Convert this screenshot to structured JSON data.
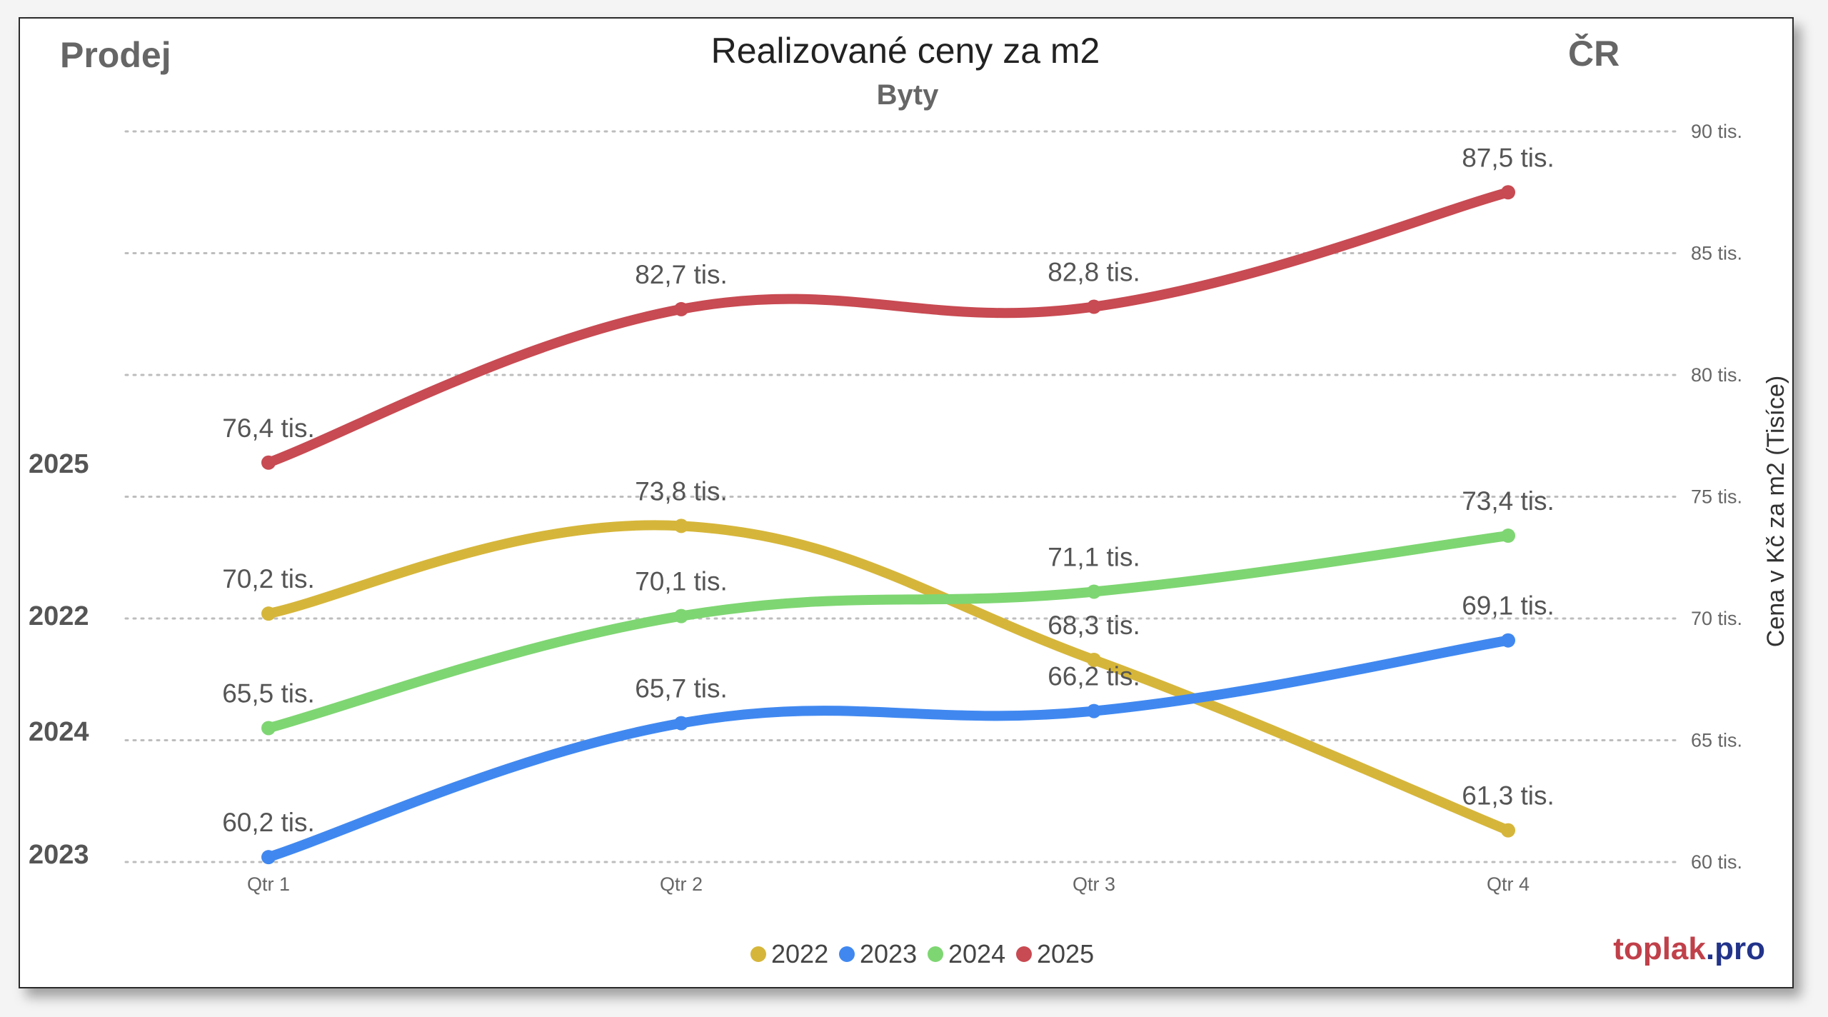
{
  "header": {
    "left": "Prodej",
    "title": "Realizované ceny za m2",
    "subtitle": "Byty",
    "right": "ČR"
  },
  "row_labels": [
    "2025",
    "2022",
    "2024",
    "2023"
  ],
  "brand": {
    "part1": "toplak",
    "dot": ".",
    "part2": "pro",
    "color1": "#c0404a",
    "color2": "#22338a"
  },
  "chart_data": {
    "type": "line",
    "categories": [
      "Qtr 1",
      "Qtr 2",
      "Qtr 3",
      "Qtr 4"
    ],
    "ylabel": "Cena v Kč za m2 (Tisíce)",
    "ylim": [
      60,
      90
    ],
    "yticks": [
      {
        "value": 60,
        "label": "60 tis."
      },
      {
        "value": 65,
        "label": "65 tis."
      },
      {
        "value": 70,
        "label": "70 tis."
      },
      {
        "value": 75,
        "label": "75 tis."
      },
      {
        "value": 80,
        "label": "80 tis."
      },
      {
        "value": 85,
        "label": "85 tis."
      },
      {
        "value": 90,
        "label": "90 tis."
      }
    ],
    "grid": true,
    "legend_position": "bottom-center",
    "series": [
      {
        "name": "2022",
        "color": "#d6b63a",
        "values": [
          70.2,
          73.8,
          68.3,
          61.3
        ],
        "labels": [
          "70,2 tis.",
          "73,8 tis.",
          "68,3 tis.",
          "61,3 tis."
        ]
      },
      {
        "name": "2023",
        "color": "#4088f0",
        "values": [
          60.2,
          65.7,
          66.2,
          69.1
        ],
        "labels": [
          "60,2 tis.",
          "65,7 tis.",
          "66,2 tis.",
          "69,1 tis."
        ]
      },
      {
        "name": "2024",
        "color": "#7ed672",
        "values": [
          65.5,
          70.1,
          71.1,
          73.4
        ],
        "labels": [
          "65,5 tis.",
          "70,1 tis.",
          "71,1 tis.",
          "73,4 tis."
        ]
      },
      {
        "name": "2025",
        "color": "#c84a52",
        "values": [
          76.4,
          82.7,
          82.8,
          87.5
        ],
        "labels": [
          "76,4 tis.",
          "82,7 tis.",
          "82,8 tis.",
          "87,5 tis."
        ]
      }
    ]
  }
}
